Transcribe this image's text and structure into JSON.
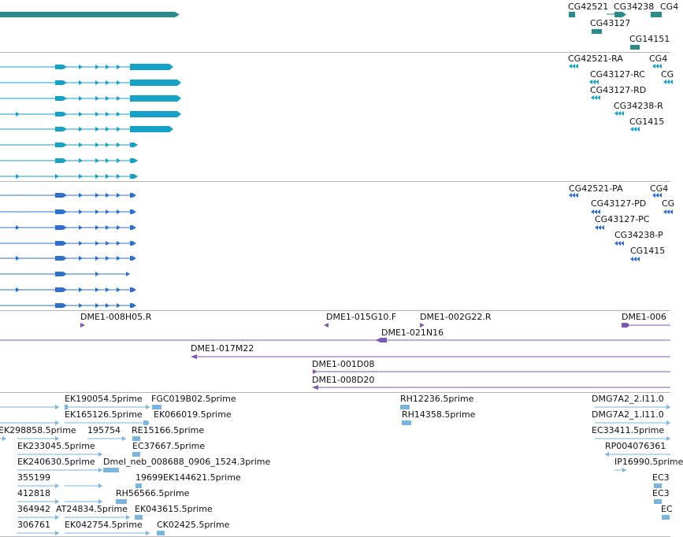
{
  "colors": {
    "gene": "#2e8b8b",
    "transcript": "#16a2c7",
    "protein": "#2f6fd1",
    "clone": "#7a5ab6",
    "est": "#7ab5dd",
    "divider": "#b7b7b7"
  },
  "tracks": {
    "genes": {
      "labels": [
        "CG42521",
        "CG34238",
        "CG4",
        "CG43127",
        "CG14151"
      ]
    },
    "transcripts": {
      "labels": [
        "CG42521-RA",
        "CG4",
        "CG43127-RC",
        "CG",
        "CG43127-RD",
        "CG34238-R",
        "CG1415"
      ]
    },
    "proteins": {
      "labels": [
        "CG42521-PA",
        "CG4",
        "CG43127-PD",
        "CG",
        "CG43127-PC",
        "CG34238-P",
        "CG1415"
      ]
    },
    "clones": {
      "labels": [
        "DME1-008H05.R",
        "DME1-015G10.F",
        "DME1-002G22.R",
        "DME1-006",
        "DME1-021N16",
        "DME1-017M22",
        "DME1-001D08",
        "DME1-008D20"
      ]
    },
    "ests": {
      "labels": [
        "EK190054.5prime",
        "FGC019B02.5prime",
        "RH12236.5prime",
        "DMG7A2_2.I11.0",
        "EK165126.5prime",
        "EK066019.5prime",
        "RH14358.5prime",
        "DMG7A2_1.I11.0",
        "EK298858.5prime",
        "195754",
        "RE15166.5prime",
        "EC33411.5prime",
        "EK233045.5prime",
        "EC37667.5prime",
        "RP004076361",
        "EK240630.5prime",
        "Dmel_neb_008688_0906_1524.3prime",
        "IP16990.5prime",
        "355199",
        "19699",
        "EK144621.5prime",
        "EC3",
        "412818",
        "RH56566.5prime",
        "EC3",
        "364942",
        "AT24834.5prime",
        "EK043615.5prime",
        "EC",
        "306761",
        "EK042754.5prime",
        "CK02425.5prime"
      ]
    }
  }
}
